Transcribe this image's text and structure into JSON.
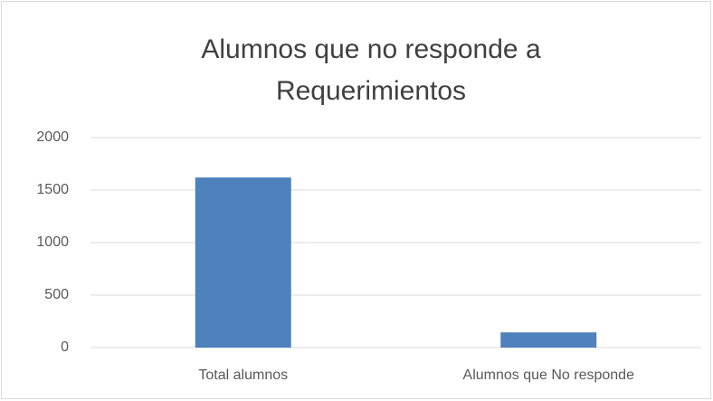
{
  "chart_data": {
    "type": "bar",
    "title": "Alumnos que no responde a Requerimientos",
    "categories": [
      "Total alumnos",
      "Alumnos que No responde"
    ],
    "values": [
      1620,
      145
    ],
    "color": "#4f81bd",
    "ylim": [
      0,
      2000
    ],
    "yticks": [
      0,
      500,
      1000,
      1500,
      2000
    ],
    "grid": true
  }
}
